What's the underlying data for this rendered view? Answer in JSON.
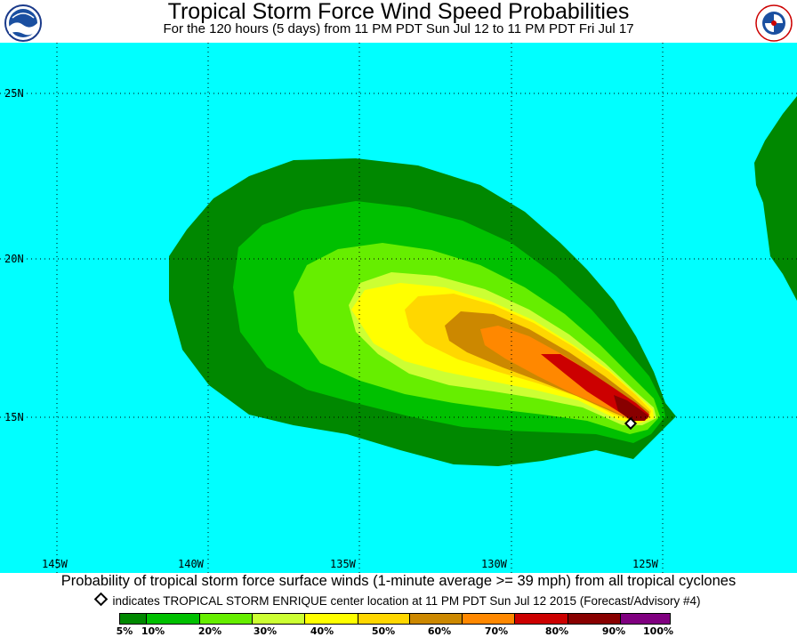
{
  "header": {
    "title": "Tropical Storm Force Wind Speed Probabilities",
    "subtitle": "For the 120 hours (5 days) from 11 PM PDT Sun Jul 12 to 11 PM PDT Fri Jul 17",
    "left_logo_icon": "noaa-logo-icon",
    "right_logo_icon": "nws-logo-icon"
  },
  "map": {
    "ocean_color": "#00FFFF",
    "lat_labels": [
      "25N",
      "20N",
      "15N"
    ],
    "lon_labels": [
      "145W",
      "140W",
      "135W",
      "130W",
      "125W"
    ],
    "storm_marker": "storm-center-diamond-icon"
  },
  "caption": {
    "text": "Probability of tropical storm force surface winds (1-minute average >= 39 mph) from all tropical cyclones",
    "note": "indicates TROPICAL STORM ENRIQUE center location at 11 PM PDT Sun Jul 12 2015 (Forecast/Advisory #4)"
  },
  "legend": {
    "colors": [
      "#008800",
      "#00C000",
      "#66EE00",
      "#CCFF33",
      "#FFFF00",
      "#FFD700",
      "#CC8800",
      "#FF8800",
      "#CC0000",
      "#880000",
      "#800080"
    ],
    "labels": [
      "5%",
      "10%",
      "20%",
      "30%",
      "40%",
      "50%",
      "60%",
      "70%",
      "80%",
      "90%",
      "100%"
    ]
  }
}
